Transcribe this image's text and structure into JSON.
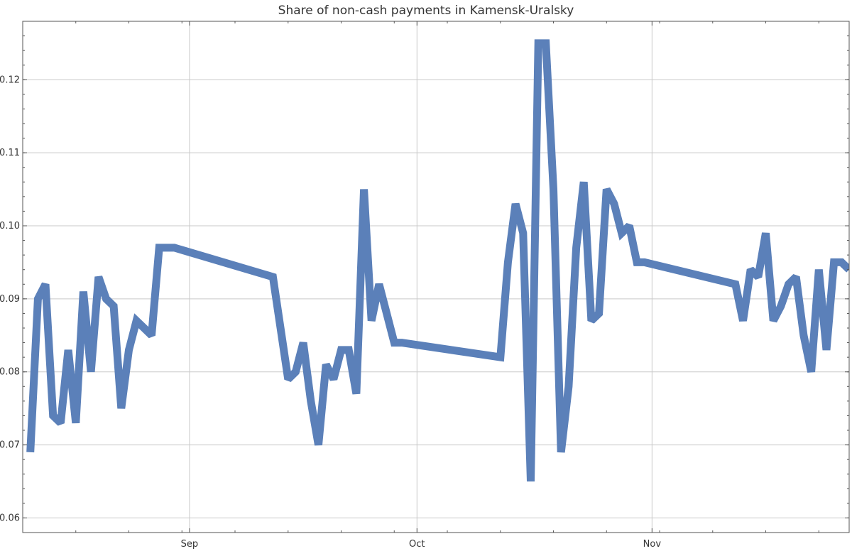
{
  "chart_data": {
    "type": "line",
    "title": "Share of non-cash payments in Kamensk-Uralsky",
    "xlabel": "",
    "ylabel": "",
    "x_range": [
      "2024-08-10",
      "2024-11-27"
    ],
    "ylim": [
      0.058,
      0.128
    ],
    "x_ticks": [
      {
        "date": "2024-09-01",
        "label": "Sep"
      },
      {
        "date": "2024-10-01",
        "label": "Oct"
      },
      {
        "date": "2024-11-01",
        "label": "Nov"
      }
    ],
    "y_ticks": [
      {
        "value": 0.06,
        "label": "0.06"
      },
      {
        "value": 0.07,
        "label": "0.07"
      },
      {
        "value": 0.08,
        "label": "0.08"
      },
      {
        "value": 0.09,
        "label": "0.09"
      },
      {
        "value": 0.1,
        "label": "0.10"
      },
      {
        "value": 0.11,
        "label": "0.11"
      },
      {
        "value": 0.12,
        "label": "0.12"
      }
    ],
    "grid": true,
    "line_color": "#5b80b9",
    "series": [
      {
        "x": [
          "2024-08-11",
          "2024-08-12",
          "2024-08-13",
          "2024-08-14",
          "2024-08-15",
          "2024-08-16",
          "2024-08-17",
          "2024-08-18",
          "2024-08-19",
          "2024-08-20",
          "2024-08-21",
          "2024-08-22",
          "2024-08-23",
          "2024-08-24",
          "2024-08-25",
          "2024-08-26",
          "2024-08-27",
          "2024-08-28",
          "2024-08-29",
          "2024-08-30",
          "2024-09-12",
          "2024-09-13",
          "2024-09-14",
          "2024-09-15",
          "2024-09-16",
          "2024-09-17",
          "2024-09-18",
          "2024-09-19",
          "2024-09-20",
          "2024-09-21",
          "2024-09-22",
          "2024-09-23",
          "2024-09-24",
          "2024-09-25",
          "2024-09-26",
          "2024-09-27",
          "2024-09-28",
          "2024-09-29",
          "2024-10-12",
          "2024-10-13",
          "2024-10-14",
          "2024-10-15",
          "2024-10-16",
          "2024-10-17",
          "2024-10-18",
          "2024-10-19",
          "2024-10-20",
          "2024-10-21",
          "2024-10-22",
          "2024-10-23",
          "2024-10-24",
          "2024-10-25",
          "2024-10-26",
          "2024-10-27",
          "2024-10-28",
          "2024-10-29",
          "2024-10-30",
          "2024-10-31",
          "2024-11-12",
          "2024-11-13",
          "2024-11-14",
          "2024-11-15",
          "2024-11-16",
          "2024-11-17",
          "2024-11-18",
          "2024-11-19",
          "2024-11-20",
          "2024-11-21",
          "2024-11-22",
          "2024-11-23",
          "2024-11-24",
          "2024-11-25",
          "2024-11-26",
          "2024-11-27"
        ],
        "y": [
          0.069,
          0.09,
          0.092,
          0.074,
          0.073,
          0.083,
          0.073,
          0.091,
          0.08,
          0.093,
          0.09,
          0.089,
          0.075,
          0.083,
          0.087,
          0.086,
          0.085,
          0.097,
          0.097,
          0.097,
          0.093,
          0.086,
          0.079,
          0.08,
          0.084,
          0.076,
          0.07,
          0.081,
          0.079,
          0.083,
          0.083,
          0.077,
          0.105,
          0.087,
          0.092,
          0.088,
          0.084,
          0.084,
          0.082,
          0.095,
          0.103,
          0.099,
          0.065,
          0.125,
          0.125,
          0.105,
          0.069,
          0.078,
          0.097,
          0.106,
          0.087,
          0.088,
          0.105,
          0.103,
          0.099,
          0.1,
          0.095,
          0.095,
          0.092,
          0.087,
          0.094,
          0.093,
          0.099,
          0.087,
          0.089,
          0.092,
          0.093,
          0.085,
          0.08,
          0.094,
          0.083,
          0.095,
          0.095,
          0.094
        ]
      }
    ]
  }
}
